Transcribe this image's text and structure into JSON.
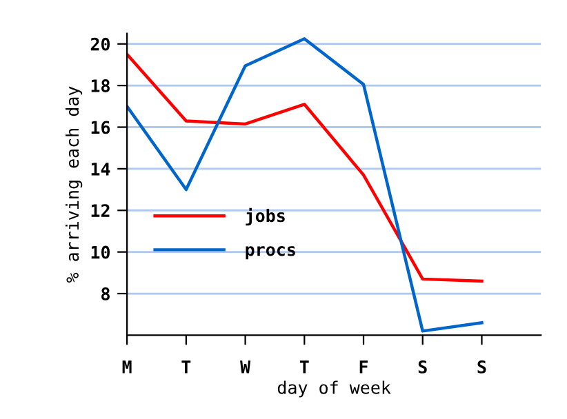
{
  "chart_data": {
    "type": "line",
    "xlabel": "day of week",
    "ylabel": "% arriving each day",
    "categories": [
      "M",
      "T",
      "W",
      "T",
      "F",
      "S",
      "S",
      null
    ],
    "ylim": [
      6,
      20.5
    ],
    "yticks": [
      8,
      10,
      12,
      14,
      16,
      18,
      20
    ],
    "grid": "y",
    "legend": "bottom left",
    "marker": "none",
    "line_style": "solid",
    "series": [
      {
        "name": "jobs",
        "color": "#ff0000",
        "values": [
          19.5,
          16.3,
          16.15,
          17.1,
          13.7,
          8.7,
          8.6,
          null
        ]
      },
      {
        "name": "procs",
        "color": "#0066cc",
        "values": [
          17.0,
          13.0,
          18.95,
          20.25,
          18.05,
          6.2,
          6.6,
          null
        ]
      }
    ]
  }
}
